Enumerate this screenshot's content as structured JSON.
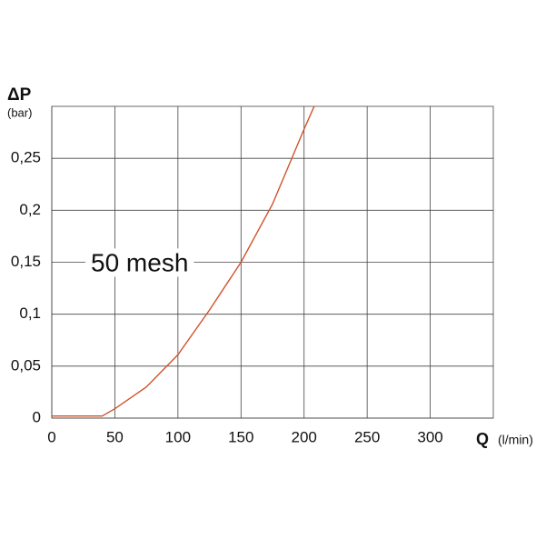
{
  "chart_data": {
    "type": "line",
    "y_label": "ΔP",
    "y_unit": "(bar)",
    "x_label": "Q",
    "x_unit": "(l/min)",
    "annotation": "50 mesh",
    "x": [
      0,
      40,
      50,
      75,
      100,
      125,
      150,
      175,
      200,
      208
    ],
    "values": [
      0.002,
      0.002,
      0.009,
      0.03,
      0.061,
      0.104,
      0.15,
      0.206,
      0.278,
      0.3
    ],
    "color": "#d0522a",
    "xlim": [
      0,
      350
    ],
    "xticks": [
      0,
      50,
      100,
      150,
      200,
      250,
      300
    ],
    "ylim": [
      0,
      0.3
    ],
    "yticks": [
      0,
      {
        "value": 0.05,
        "label": "0,05"
      },
      {
        "value": 0.1,
        "label": "0,1"
      },
      {
        "value": 0.15,
        "label": "0,15"
      },
      {
        "value": 0.2,
        "label": "0,2"
      },
      {
        "value": 0.25,
        "label": "0,25"
      }
    ],
    "grid": true
  }
}
